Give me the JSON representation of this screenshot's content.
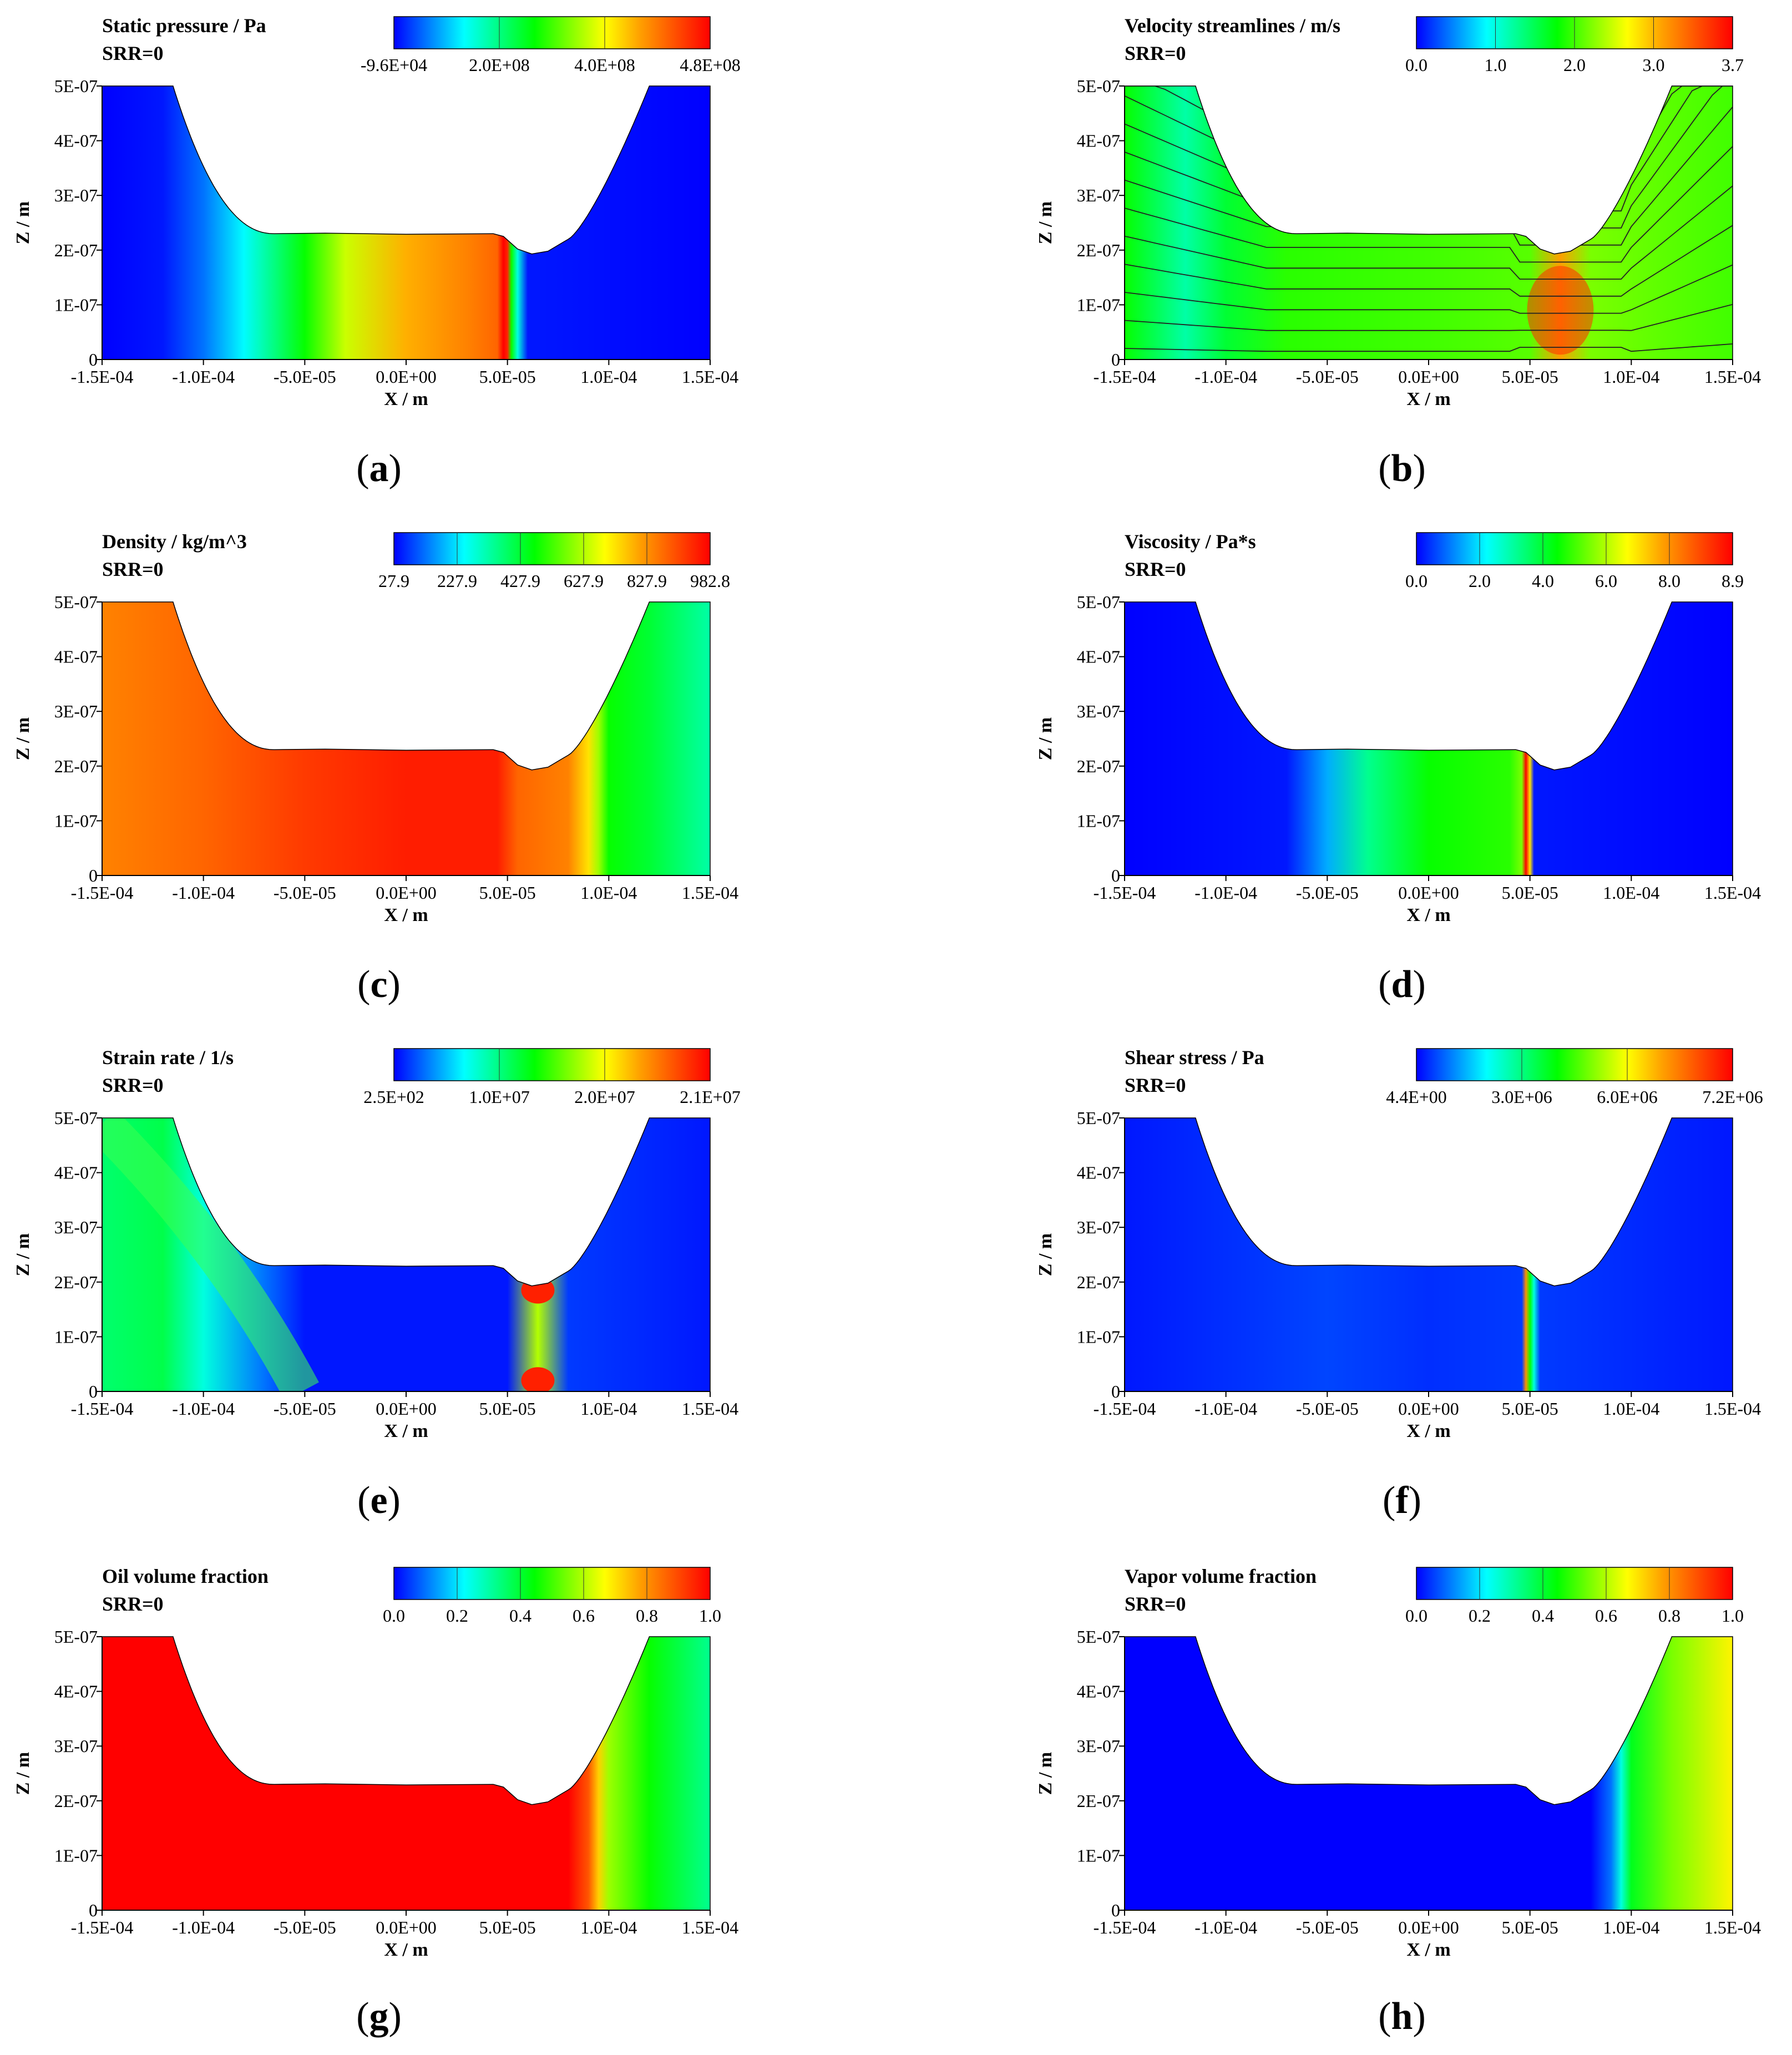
{
  "chart_data": [
    {
      "id": "a",
      "type": "heatmap",
      "caption_letter": "a",
      "title": "Static pressure / Pa",
      "subtitle": "SRR=0",
      "xlabel": "X / m",
      "ylabel": "Z / m",
      "xticks": [
        "-1.5E-04",
        "-1.0E-04",
        "-5.0E-05",
        "0.0E+00",
        "5.0E-05",
        "1.0E-04",
        "1.5E-04"
      ],
      "yticks": [
        "0",
        "1E-07",
        "2E-07",
        "3E-07",
        "4E-07",
        "5E-07"
      ],
      "xlim": [
        -0.00015,
        0.00015
      ],
      "ylim": [
        0,
        5e-07
      ],
      "colorbar": {
        "labels": [
          "-9.6E+04",
          "2.0E+08",
          "4.0E+08",
          "4.8E+08"
        ],
        "min": -96000,
        "max": 480000000
      },
      "field_profile_x": [
        [
          -0.00015,
          0.0
        ],
        [
          -0.00012,
          0.02
        ],
        [
          -0.0001,
          0.1
        ],
        [
          -8e-05,
          0.22
        ],
        [
          -5e-05,
          0.45
        ],
        [
          -3e-05,
          0.62
        ],
        [
          0.0,
          0.76
        ],
        [
          3e-05,
          0.82
        ],
        [
          4.5e-05,
          0.86
        ],
        [
          4.8e-05,
          1.0
        ],
        [
          5e-05,
          0.95
        ],
        [
          5.2e-05,
          0.45
        ],
        [
          5.5e-05,
          0.25
        ],
        [
          6e-05,
          0.02
        ],
        [
          0.00015,
          0.0
        ]
      ]
    },
    {
      "id": "b",
      "type": "heatmap",
      "caption_letter": "b",
      "title": "Velocity streamlines / m/s",
      "subtitle": "SRR=0",
      "xlabel": "X / m",
      "ylabel": "Z / m",
      "xticks": [
        "-1.5E-04",
        "-1.0E-04",
        "-5.0E-05",
        "0.0E+00",
        "5.0E-05",
        "1.0E-04",
        "1.5E-04"
      ],
      "yticks": [
        "0",
        "1E-07",
        "2E-07",
        "3E-07",
        "4E-07",
        "5E-07"
      ],
      "xlim": [
        -0.00015,
        0.00015
      ],
      "ylim": [
        0,
        5e-07
      ],
      "colorbar": {
        "labels": [
          "0.0",
          "1.0",
          "2.0",
          "3.0",
          "3.7"
        ],
        "min": 0,
        "max": 3.7
      },
      "field_profile_x": [
        [
          -0.00015,
          0.45
        ],
        [
          -0.00012,
          0.3
        ],
        [
          -0.0001,
          0.4
        ],
        [
          -7e-05,
          0.48
        ],
        [
          0.0,
          0.5
        ],
        [
          5e-05,
          0.52
        ],
        [
          6.5e-05,
          0.78
        ],
        [
          8e-05,
          0.55
        ],
        [
          0.00015,
          0.5
        ]
      ]
    },
    {
      "id": "c",
      "type": "heatmap",
      "caption_letter": "c",
      "title": "Density / kg/m^3",
      "subtitle": "SRR=0",
      "xlabel": "X / m",
      "ylabel": "Z / m",
      "xticks": [
        "-1.5E-04",
        "-1.0E-04",
        "-5.0E-05",
        "0.0E+00",
        "5.0E-05",
        "1.0E-04",
        "1.5E-04"
      ],
      "yticks": [
        "0",
        "1E-07",
        "2E-07",
        "3E-07",
        "4E-07",
        "5E-07"
      ],
      "xlim": [
        -0.00015,
        0.00015
      ],
      "ylim": [
        0,
        5e-07
      ],
      "colorbar": {
        "labels": [
          "27.9",
          "227.9",
          "427.9",
          "627.9",
          "827.9",
          "982.8"
        ],
        "min": 27.9,
        "max": 982.8
      },
      "field_profile_x": [
        [
          -0.00015,
          0.82
        ],
        [
          -0.0001,
          0.86
        ],
        [
          -5e-05,
          0.92
        ],
        [
          0.0,
          0.96
        ],
        [
          4.5e-05,
          0.96
        ],
        [
          5.5e-05,
          0.86
        ],
        [
          8e-05,
          0.82
        ],
        [
          9e-05,
          0.7
        ],
        [
          9.5e-05,
          0.58
        ],
        [
          0.0001,
          0.45
        ],
        [
          0.00012,
          0.4
        ],
        [
          0.00015,
          0.3
        ]
      ]
    },
    {
      "id": "d",
      "type": "heatmap",
      "caption_letter": "d",
      "title": "Viscosity / Pa*s",
      "subtitle": "SRR=0",
      "xlabel": "X / m",
      "ylabel": "Z / m",
      "xticks": [
        "-1.5E-04",
        "-1.0E-04",
        "-5.0E-05",
        "0.0E+00",
        "5.0E-05",
        "1.0E-04",
        "1.5E-04"
      ],
      "yticks": [
        "0",
        "1E-07",
        "2E-07",
        "3E-07",
        "4E-07",
        "5E-07"
      ],
      "xlim": [
        -0.00015,
        0.00015
      ],
      "ylim": [
        0,
        5e-07
      ],
      "colorbar": {
        "labels": [
          "0.0",
          "2.0",
          "4.0",
          "6.0",
          "8.0",
          "8.9"
        ],
        "min": 0,
        "max": 8.9
      },
      "field_profile_x": [
        [
          -0.00015,
          0.0
        ],
        [
          -7e-05,
          0.02
        ],
        [
          -5e-05,
          0.15
        ],
        [
          -3e-05,
          0.32
        ],
        [
          0.0,
          0.45
        ],
        [
          4e-05,
          0.48
        ],
        [
          4.6e-05,
          0.55
        ],
        [
          4.8e-05,
          1.0
        ],
        [
          5e-05,
          0.7
        ],
        [
          5.2e-05,
          0.02
        ],
        [
          0.00015,
          0.0
        ]
      ]
    },
    {
      "id": "e",
      "type": "heatmap",
      "caption_letter": "e",
      "title": "Strain rate / 1/s",
      "subtitle": "SRR=0",
      "xlabel": "X / m",
      "ylabel": "Z / m",
      "xticks": [
        "-1.5E-04",
        "-1.0E-04",
        "-5.0E-05",
        "0.0E+00",
        "5.0E-05",
        "1.0E-04",
        "1.5E-04"
      ],
      "yticks": [
        "0",
        "1E-07",
        "2E-07",
        "3E-07",
        "4E-07",
        "5E-07"
      ],
      "xlim": [
        -0.00015,
        0.00015
      ],
      "ylim": [
        0,
        5e-07
      ],
      "colorbar": {
        "labels": [
          "2.5E+02",
          "1.0E+07",
          "2.0E+07",
          "2.1E+07"
        ],
        "min": 250,
        "max": 21000000
      },
      "field_profile_x": [
        [
          -0.00015,
          0.35
        ],
        [
          -0.00012,
          0.38
        ],
        [
          -0.0001,
          0.25
        ],
        [
          -7e-05,
          0.1
        ],
        [
          -5e-05,
          0.02
        ],
        [
          5e-05,
          0.02
        ],
        [
          6.5e-05,
          0.6
        ],
        [
          8e-05,
          0.05
        ],
        [
          0.00015,
          0.02
        ]
      ]
    },
    {
      "id": "f",
      "type": "heatmap",
      "caption_letter": "f",
      "title": "Shear stress / Pa",
      "subtitle": "SRR=0",
      "xlabel": "X / m",
      "ylabel": "Z / m",
      "xticks": [
        "-1.5E-04",
        "-1.0E-04",
        "-5.0E-05",
        "0.0E+00",
        "5.0E-05",
        "1.0E-04",
        "1.5E-04"
      ],
      "yticks": [
        "0",
        "1E-07",
        "2E-07",
        "3E-07",
        "4E-07",
        "5E-07"
      ],
      "xlim": [
        -0.00015,
        0.00015
      ],
      "ylim": [
        0,
        5e-07
      ],
      "colorbar": {
        "labels": [
          "4.4E+00",
          "3.0E+06",
          "6.0E+06",
          "7.2E+06"
        ],
        "min": 4.4,
        "max": 7200000
      },
      "field_profile_x": [
        [
          -0.00015,
          0.02
        ],
        [
          -5e-05,
          0.06
        ],
        [
          0.0,
          0.04
        ],
        [
          4.6e-05,
          0.05
        ],
        [
          4.8e-05,
          0.8
        ],
        [
          5e-05,
          0.45
        ],
        [
          5.2e-05,
          0.25
        ],
        [
          5.5e-05,
          0.05
        ],
        [
          0.00015,
          0.02
        ]
      ]
    },
    {
      "id": "g",
      "type": "heatmap",
      "caption_letter": "g",
      "title": "Oil volume fraction",
      "subtitle": "SRR=0",
      "xlabel": "X / m",
      "ylabel": "Z / m",
      "xticks": [
        "-1.5E-04",
        "-1.0E-04",
        "-5.0E-05",
        "0.0E+00",
        "5.0E-05",
        "1.0E-04",
        "1.5E-04"
      ],
      "yticks": [
        "0",
        "1E-07",
        "2E-07",
        "3E-07",
        "4E-07",
        "5E-07"
      ],
      "xlim": [
        -0.00015,
        0.00015
      ],
      "ylim": [
        0,
        5e-07
      ],
      "colorbar": {
        "labels": [
          "0.0",
          "0.2",
          "0.4",
          "0.6",
          "0.8",
          "1.0"
        ],
        "min": 0,
        "max": 1
      },
      "field_profile_x": [
        [
          -0.00015,
          1.0
        ],
        [
          8e-05,
          1.0
        ],
        [
          9e-05,
          0.88
        ],
        [
          9.5e-05,
          0.72
        ],
        [
          0.0001,
          0.58
        ],
        [
          0.00012,
          0.45
        ],
        [
          0.00015,
          0.32
        ]
      ]
    },
    {
      "id": "h",
      "type": "heatmap",
      "caption_letter": "h",
      "title": "Vapor volume fraction",
      "subtitle": "SRR=0",
      "xlabel": "X / m",
      "ylabel": "Z / m",
      "xticks": [
        "-1.5E-04",
        "-1.0E-04",
        "-5.0E-05",
        "0.0E+00",
        "5.0E-05",
        "1.0E-04",
        "1.5E-04"
      ],
      "yticks": [
        "0",
        "1E-07",
        "2E-07",
        "3E-07",
        "4E-07",
        "5E-07"
      ],
      "xlim": [
        -0.00015,
        0.00015
      ],
      "ylim": [
        0,
        5e-07
      ],
      "colorbar": {
        "labels": [
          "0.0",
          "0.2",
          "0.4",
          "0.6",
          "0.8",
          "1.0"
        ],
        "min": 0,
        "max": 1
      },
      "field_profile_x": [
        [
          -0.00015,
          0.0
        ],
        [
          8e-05,
          0.0
        ],
        [
          9e-05,
          0.1
        ],
        [
          9.5e-05,
          0.25
        ],
        [
          0.0001,
          0.42
        ],
        [
          0.00012,
          0.55
        ],
        [
          0.00015,
          0.68
        ]
      ]
    }
  ],
  "colormap": [
    "#0000ff",
    "#0080ff",
    "#00ffff",
    "#00ff80",
    "#00ff00",
    "#80ff00",
    "#ffff00",
    "#ffa000",
    "#ff5000",
    "#ff0000"
  ]
}
